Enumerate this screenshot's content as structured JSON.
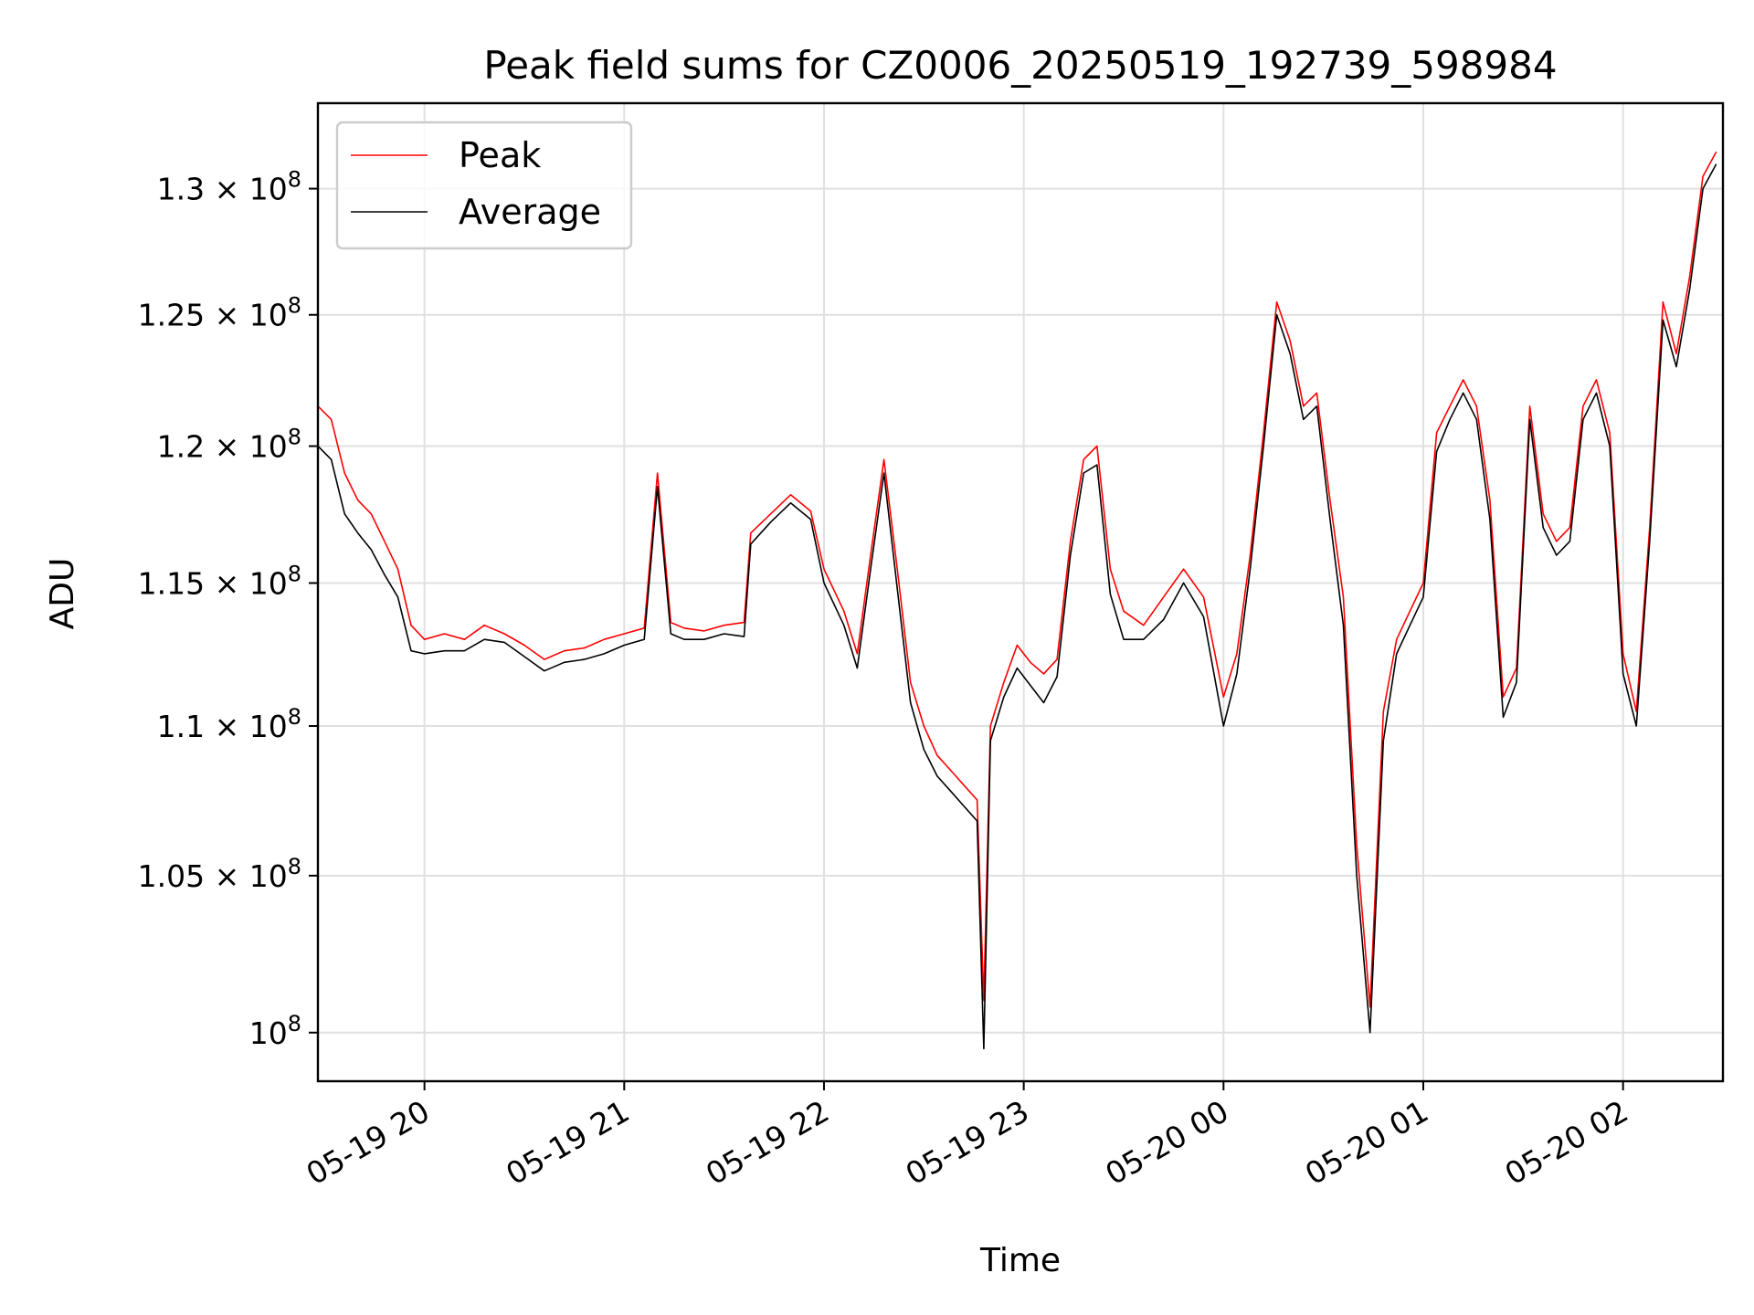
{
  "chart_data": {
    "type": "line",
    "title": "Peak field sums for CZ0006_20250519_192739_598984",
    "xlabel": "Time",
    "ylabel": "ADU",
    "x_range": [
      "05-19 19:28",
      "05-20 02:30"
    ],
    "y_range": [
      98500000,
      133500000
    ],
    "y_scale": "log",
    "grid": true,
    "legend_position": "upper left",
    "x_ticks": [
      "05-19 20",
      "05-19 21",
      "05-19 22",
      "05-19 23",
      "05-20 00",
      "05-20 01",
      "05-20 02"
    ],
    "y_ticks": [
      {
        "value": 100000000,
        "mant": "10",
        "exp": "8"
      },
      {
        "value": 105000000,
        "mant": "1.05 × 10",
        "exp": "8"
      },
      {
        "value": 110000000,
        "mant": "1.1 × 10",
        "exp": "8"
      },
      {
        "value": 115000000,
        "mant": "1.15 × 10",
        "exp": "8"
      },
      {
        "value": 120000000,
        "mant": "1.2 × 10",
        "exp": "8"
      },
      {
        "value": 125000000,
        "mant": "1.25 × 10",
        "exp": "8"
      },
      {
        "value": 130000000,
        "mant": "1.3 × 10",
        "exp": "8"
      }
    ],
    "series": [
      {
        "name": "Peak",
        "color": "#ff0000",
        "x": [
          "05-19 19:28",
          "05-19 19:32",
          "05-19 19:36",
          "05-19 19:40",
          "05-19 19:44",
          "05-19 19:48",
          "05-19 19:52",
          "05-19 19:56",
          "05-19 20:00",
          "05-19 20:06",
          "05-19 20:12",
          "05-19 20:18",
          "05-19 20:24",
          "05-19 20:30",
          "05-19 20:36",
          "05-19 20:42",
          "05-19 20:48",
          "05-19 20:54",
          "05-19 21:00",
          "05-19 21:06",
          "05-19 21:10",
          "05-19 21:14",
          "05-19 21:18",
          "05-19 21:24",
          "05-19 21:30",
          "05-19 21:36",
          "05-19 21:38",
          "05-19 21:44",
          "05-19 21:50",
          "05-19 21:56",
          "05-19 22:00",
          "05-19 22:06",
          "05-19 22:10",
          "05-19 22:14",
          "05-19 22:18",
          "05-19 22:22",
          "05-19 22:26",
          "05-19 22:30",
          "05-19 22:34",
          "05-19 22:38",
          "05-19 22:42",
          "05-19 22:46",
          "05-19 22:48",
          "05-19 22:50",
          "05-19 22:54",
          "05-19 22:58",
          "05-19 23:02",
          "05-19 23:06",
          "05-19 23:10",
          "05-19 23:14",
          "05-19 23:18",
          "05-19 23:22",
          "05-19 23:26",
          "05-19 23:30",
          "05-19 23:36",
          "05-19 23:42",
          "05-19 23:48",
          "05-19 23:54",
          "05-20 00:00",
          "05-20 00:04",
          "05-20 00:08",
          "05-20 00:12",
          "05-20 00:16",
          "05-20 00:20",
          "05-20 00:24",
          "05-20 00:28",
          "05-20 00:32",
          "05-20 00:36",
          "05-20 00:40",
          "05-20 00:44",
          "05-20 00:48",
          "05-20 00:52",
          "05-20 00:56",
          "05-20 01:00",
          "05-20 01:04",
          "05-20 01:08",
          "05-20 01:12",
          "05-20 01:16",
          "05-20 01:20",
          "05-20 01:24",
          "05-20 01:28",
          "05-20 01:32",
          "05-20 01:36",
          "05-20 01:40",
          "05-20 01:44",
          "05-20 01:48",
          "05-20 01:52",
          "05-20 01:56",
          "05-20 02:00",
          "05-20 02:04",
          "05-20 02:08",
          "05-20 02:12",
          "05-20 02:16",
          "05-20 02:20",
          "05-20 02:24",
          "05-20 02:28"
        ],
        "values": [
          121500000,
          121000000,
          119000000,
          118000000,
          117500000,
          116500000,
          115500000,
          113500000,
          113000000,
          113200000,
          113000000,
          113500000,
          113200000,
          112800000,
          112300000,
          112600000,
          112700000,
          113000000,
          113200000,
          113400000,
          119000000,
          113600000,
          113400000,
          113300000,
          113500000,
          113600000,
          116800000,
          117500000,
          118200000,
          117600000,
          115500000,
          114000000,
          112500000,
          116000000,
          119500000,
          115500000,
          111500000,
          110000000,
          109000000,
          108500000,
          108000000,
          107500000,
          101000000,
          110000000,
          111500000,
          112800000,
          112200000,
          111800000,
          112300000,
          116500000,
          119500000,
          120000000,
          115500000,
          114000000,
          113500000,
          114500000,
          115500000,
          114500000,
          111000000,
          112500000,
          116000000,
          120500000,
          125500000,
          124000000,
          121500000,
          122000000,
          118000000,
          114500000,
          106000000,
          100800000,
          110500000,
          113000000,
          114000000,
          115000000,
          120500000,
          121500000,
          122500000,
          121500000,
          118000000,
          111000000,
          112000000,
          121500000,
          117500000,
          116500000,
          117000000,
          121500000,
          122500000,
          120500000,
          112500000,
          110500000,
          117000000,
          125500000,
          123500000,
          126500000,
          130500000,
          131500000
        ]
      },
      {
        "name": "Average",
        "color": "#000000",
        "x": [
          "05-19 19:28",
          "05-19 19:32",
          "05-19 19:36",
          "05-19 19:40",
          "05-19 19:44",
          "05-19 19:48",
          "05-19 19:52",
          "05-19 19:56",
          "05-19 20:00",
          "05-19 20:06",
          "05-19 20:12",
          "05-19 20:18",
          "05-19 20:24",
          "05-19 20:30",
          "05-19 20:36",
          "05-19 20:42",
          "05-19 20:48",
          "05-19 20:54",
          "05-19 21:00",
          "05-19 21:06",
          "05-19 21:10",
          "05-19 21:14",
          "05-19 21:18",
          "05-19 21:24",
          "05-19 21:30",
          "05-19 21:36",
          "05-19 21:38",
          "05-19 21:44",
          "05-19 21:50",
          "05-19 21:56",
          "05-19 22:00",
          "05-19 22:06",
          "05-19 22:10",
          "05-19 22:14",
          "05-19 22:18",
          "05-19 22:22",
          "05-19 22:26",
          "05-19 22:30",
          "05-19 22:34",
          "05-19 22:38",
          "05-19 22:42",
          "05-19 22:46",
          "05-19 22:48",
          "05-19 22:50",
          "05-19 22:54",
          "05-19 22:58",
          "05-19 23:02",
          "05-19 23:06",
          "05-19 23:10",
          "05-19 23:14",
          "05-19 23:18",
          "05-19 23:22",
          "05-19 23:26",
          "05-19 23:30",
          "05-19 23:36",
          "05-19 23:42",
          "05-19 23:48",
          "05-19 23:54",
          "05-20 00:00",
          "05-20 00:04",
          "05-20 00:08",
          "05-20 00:12",
          "05-20 00:16",
          "05-20 00:20",
          "05-20 00:24",
          "05-20 00:28",
          "05-20 00:32",
          "05-20 00:36",
          "05-20 00:40",
          "05-20 00:44",
          "05-20 00:48",
          "05-20 00:52",
          "05-20 00:56",
          "05-20 01:00",
          "05-20 01:04",
          "05-20 01:08",
          "05-20 01:12",
          "05-20 01:16",
          "05-20 01:20",
          "05-20 01:24",
          "05-20 01:28",
          "05-20 01:32",
          "05-20 01:36",
          "05-20 01:40",
          "05-20 01:44",
          "05-20 01:48",
          "05-20 01:52",
          "05-20 01:56",
          "05-20 02:00",
          "05-20 02:04",
          "05-20 02:08",
          "05-20 02:12",
          "05-20 02:16",
          "05-20 02:20",
          "05-20 02:24",
          "05-20 02:28"
        ],
        "values": [
          120000000,
          119500000,
          117500000,
          116800000,
          116200000,
          115300000,
          114500000,
          112600000,
          112500000,
          112600000,
          112600000,
          113000000,
          112900000,
          112400000,
          111900000,
          112200000,
          112300000,
          112500000,
          112800000,
          113000000,
          118500000,
          113200000,
          113000000,
          113000000,
          113200000,
          113100000,
          116400000,
          117200000,
          117900000,
          117300000,
          115000000,
          113500000,
          112000000,
          115500000,
          119000000,
          114800000,
          110800000,
          109200000,
          108300000,
          107800000,
          107300000,
          106800000,
          99500000,
          109500000,
          111000000,
          112000000,
          111400000,
          110800000,
          111700000,
          116000000,
          119000000,
          119300000,
          114600000,
          113000000,
          113000000,
          113700000,
          115000000,
          113800000,
          110000000,
          111800000,
          115500000,
          120000000,
          125000000,
          123500000,
          121000000,
          121500000,
          117300000,
          113500000,
          105000000,
          100000000,
          109500000,
          112500000,
          113500000,
          114500000,
          119800000,
          121000000,
          122000000,
          121000000,
          117300000,
          110300000,
          111500000,
          121000000,
          117000000,
          116000000,
          116500000,
          121000000,
          122000000,
          120000000,
          111800000,
          110000000,
          116500000,
          124800000,
          123000000,
          126000000,
          130000000,
          131000000
        ]
      }
    ]
  }
}
